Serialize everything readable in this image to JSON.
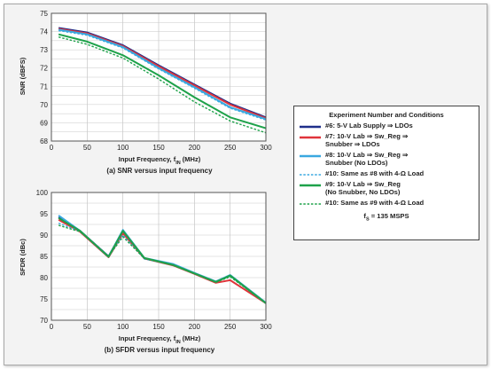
{
  "charts": [
    {
      "key": "snr",
      "caption": "(a) SNR versus input frequency",
      "xlabel_main": "Input Frequency, f",
      "xlabel_sub": "IN",
      "xlabel_unit": " (MHz)",
      "ylabel": "SNR (dBFS)"
    },
    {
      "key": "sfdr",
      "caption": "(b) SFDR versus input frequency",
      "xlabel_main": "Input Frequency, f",
      "xlabel_sub": "IN",
      "xlabel_unit": " (MHz)",
      "ylabel": "SFDR (dBc)"
    }
  ],
  "legend": {
    "title": "Experiment Number and Conditions",
    "footer_main": "f",
    "footer_sub": "S",
    "footer_rest": " = 135 MSPS",
    "items": [
      {
        "label": "#6: 5-V Lab Supply ⇒ LDOs",
        "color": "#1f2f8a",
        "dash": false,
        "width": 2
      },
      {
        "label": "#7: 10-V Lab ⇒ Sw_Reg ⇒\nSnubber ⇒ LDOs",
        "color": "#e0343b",
        "dash": false,
        "width": 2
      },
      {
        "label": "#8: 10-V Lab ⇒ Sw_Reg ⇒\nSnubber (No LDOs)",
        "color": "#3aa8e0",
        "dash": false,
        "width": 2
      },
      {
        "label": "#10: Same as #8 with 4-Ω Load",
        "color": "#3aa8e0",
        "dash": true,
        "width": 1.4
      },
      {
        "label": "#9: 10-V Lab ⇒ Sw_Reg\n(No Snubber, No LDOs)",
        "color": "#1ea24a",
        "dash": false,
        "width": 2
      },
      {
        "label": "#10: Same as #9 with 4-Ω Load",
        "color": "#1ea24a",
        "dash": true,
        "width": 1.4
      }
    ]
  },
  "chart_data": [
    {
      "type": "line",
      "key": "snr",
      "title": "(a) SNR versus input frequency",
      "xlabel": "Input Frequency, fIN (MHz)",
      "ylabel": "SNR (dBFS)",
      "xlim": [
        0,
        300
      ],
      "ylim": [
        68,
        75
      ],
      "xticks": [
        0,
        50,
        100,
        150,
        200,
        250,
        300
      ],
      "yticks": [
        68,
        69,
        70,
        71,
        72,
        73,
        74,
        75
      ],
      "grid": true,
      "series": [
        {
          "name": "#6: 5-V Lab Supply ⇒ LDOs",
          "x": [
            10,
            50,
            100,
            150,
            200,
            250,
            300
          ],
          "y": [
            74.2,
            73.95,
            73.25,
            72.15,
            71.1,
            70.05,
            69.3
          ]
        },
        {
          "name": "#7: 10-V Lab ⇒ Sw_Reg ⇒ Snubber ⇒ LDOs",
          "x": [
            10,
            50,
            100,
            150,
            200,
            250,
            300
          ],
          "y": [
            74.15,
            73.9,
            73.2,
            72.1,
            71.05,
            70.0,
            69.25
          ]
        },
        {
          "name": "#8: 10-V Lab ⇒ Sw_Reg ⇒ Snubber (No LDOs)",
          "x": [
            10,
            50,
            100,
            150,
            200,
            250,
            300
          ],
          "y": [
            74.1,
            73.85,
            73.15,
            72.0,
            70.95,
            69.85,
            69.2
          ]
        },
        {
          "name": "#10: Same as #8 with 4-Ω Load",
          "x": [
            10,
            50,
            100,
            150,
            200,
            250,
            300
          ],
          "y": [
            74.05,
            73.8,
            73.1,
            71.95,
            70.9,
            69.8,
            69.15
          ]
        },
        {
          "name": "#9: 10-V Lab ⇒ Sw_Reg (No Snubber, No LDOs)",
          "x": [
            10,
            50,
            100,
            150,
            200,
            250,
            300
          ],
          "y": [
            73.85,
            73.45,
            72.7,
            71.6,
            70.4,
            69.3,
            68.7
          ]
        },
        {
          "name": "#10: Same as #9 with 4-Ω Load",
          "x": [
            10,
            50,
            100,
            150,
            200,
            250,
            300
          ],
          "y": [
            73.7,
            73.3,
            72.55,
            71.4,
            70.15,
            69.1,
            68.45
          ]
        }
      ]
    },
    {
      "type": "line",
      "key": "sfdr",
      "title": "(b) SFDR versus input frequency",
      "xlabel": "Input Frequency, fIN (MHz)",
      "ylabel": "SFDR (dBc)",
      "xlim": [
        0,
        300
      ],
      "ylim": [
        70,
        100
      ],
      "xticks": [
        0,
        50,
        100,
        150,
        200,
        250,
        300
      ],
      "yticks": [
        70,
        75,
        80,
        85,
        90,
        95,
        100
      ],
      "grid": true,
      "series": [
        {
          "name": "#6: 5-V Lab Supply ⇒ LDOs",
          "x": [
            10,
            40,
            80,
            100,
            130,
            170,
            200,
            230,
            250,
            300
          ],
          "y": [
            94.2,
            91.0,
            85.0,
            91.0,
            84.5,
            83.0,
            81.0,
            79.0,
            80.5,
            74.0
          ]
        },
        {
          "name": "#7: 10-V Lab ⇒ Sw_Reg ⇒ Snubber ⇒ LDOs",
          "x": [
            10,
            40,
            80,
            100,
            130,
            170,
            200,
            230,
            250,
            300
          ],
          "y": [
            93.6,
            90.8,
            84.8,
            90.4,
            84.5,
            82.9,
            80.9,
            78.8,
            79.4,
            74.0
          ]
        },
        {
          "name": "#8: 10-V Lab ⇒ Sw_Reg ⇒ Snubber (No LDOs)",
          "x": [
            10,
            40,
            80,
            100,
            130,
            170,
            200,
            230,
            250,
            300
          ],
          "y": [
            94.6,
            91.0,
            84.9,
            91.2,
            84.6,
            83.2,
            81.1,
            79.1,
            80.6,
            74.1
          ]
        },
        {
          "name": "#10: Same as #8 with 4-Ω Load",
          "x": [
            10,
            40,
            80,
            100,
            130,
            170,
            200,
            230,
            250,
            300
          ],
          "y": [
            92.8,
            90.9,
            85.0,
            90.0,
            84.4,
            83.0,
            81.0,
            79.0,
            80.3,
            74.0
          ]
        },
        {
          "name": "#9: 10-V Lab ⇒ Sw_Reg (No Snubber, No LDOs)",
          "x": [
            10,
            40,
            80,
            100,
            130,
            170,
            200,
            230,
            250,
            300
          ],
          "y": [
            94.0,
            91.0,
            84.9,
            91.0,
            84.6,
            83.0,
            81.0,
            79.0,
            80.5,
            74.0
          ]
        },
        {
          "name": "#10: Same as #9 with 4-Ω Load",
          "x": [
            10,
            40,
            80,
            100,
            130,
            170,
            200,
            230,
            250,
            300
          ],
          "y": [
            92.3,
            90.8,
            85.0,
            89.6,
            84.5,
            82.9,
            80.9,
            78.9,
            80.2,
            74.0
          ]
        }
      ]
    }
  ]
}
